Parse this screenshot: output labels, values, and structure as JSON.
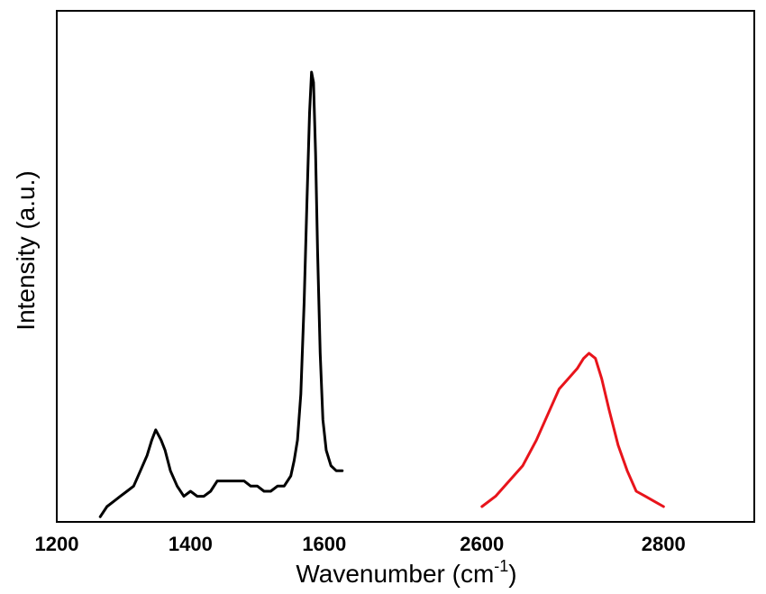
{
  "chart_data": {
    "type": "line",
    "title": "",
    "xlabel_main": "Wavenumber (cm",
    "xlabel_sup": "-1",
    "xlabel_tail": ")",
    "ylabel": "Intensity (a.u.)",
    "x_segments": [
      {
        "axis_start": 1200,
        "axis_end": 1700,
        "ticks": [
          1200,
          1400,
          1600
        ]
      },
      {
        "axis_start": 2500,
        "axis_end": 2900,
        "ticks": [
          2600,
          2800
        ]
      }
    ],
    "ylim": [
      0,
      1
    ],
    "grid": false,
    "legend": "none",
    "series": [
      {
        "color": "#000000",
        "x": [
          1265,
          1275,
          1285,
          1295,
          1305,
          1315,
          1325,
          1335,
          1342,
          1348,
          1352,
          1356,
          1362,
          1370,
          1380,
          1390,
          1400,
          1410,
          1420,
          1430,
          1440,
          1450,
          1460,
          1470,
          1480,
          1490,
          1500,
          1510,
          1520,
          1530,
          1540,
          1550,
          1555,
          1560,
          1565,
          1570,
          1574,
          1578,
          1581,
          1584,
          1587,
          1590,
          1594,
          1598,
          1603,
          1610,
          1618,
          1627
        ],
        "y": [
          0.01,
          0.03,
          0.04,
          0.05,
          0.06,
          0.07,
          0.1,
          0.13,
          0.16,
          0.18,
          0.17,
          0.16,
          0.14,
          0.1,
          0.07,
          0.05,
          0.06,
          0.05,
          0.05,
          0.06,
          0.08,
          0.08,
          0.08,
          0.08,
          0.08,
          0.07,
          0.07,
          0.06,
          0.06,
          0.07,
          0.07,
          0.09,
          0.12,
          0.16,
          0.25,
          0.43,
          0.62,
          0.8,
          0.88,
          0.86,
          0.72,
          0.53,
          0.33,
          0.2,
          0.14,
          0.11,
          0.1,
          0.1
        ]
      },
      {
        "color": "#e8141b",
        "x": [
          2600,
          2615,
          2630,
          2645,
          2660,
          2675,
          2685,
          2695,
          2705,
          2712,
          2718,
          2725,
          2732,
          2740,
          2750,
          2760,
          2770,
          2780,
          2790,
          2800
        ],
        "y": [
          0.03,
          0.05,
          0.08,
          0.11,
          0.16,
          0.22,
          0.26,
          0.28,
          0.3,
          0.32,
          0.33,
          0.32,
          0.28,
          0.22,
          0.15,
          0.1,
          0.06,
          0.05,
          0.04,
          0.03
        ]
      }
    ]
  }
}
